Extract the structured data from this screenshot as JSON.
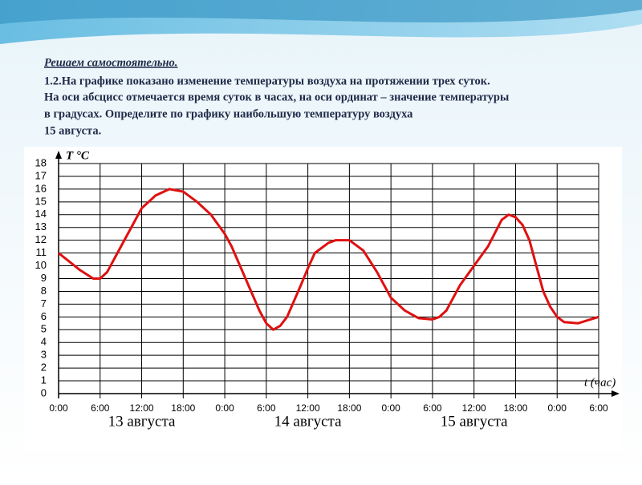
{
  "header": {
    "title": "Решаем самостоятельно.",
    "lines": [
      "1.2.На графике показано изменение температуры воздуха на протяжении трех суток.",
      "На оси абсцисс отмечается время суток в часах, на оси ординат – значение температуры",
      "в градусах. Определите по графику наибольшую температуру воздуха",
      "15 августа."
    ]
  },
  "chart_data": {
    "type": "line",
    "y_label": "T °C",
    "x_label": "t (час)",
    "day_labels": [
      "13 августа",
      "14 августа",
      "15 августа"
    ],
    "x": [
      0,
      3,
      5,
      6,
      7,
      9,
      11,
      12,
      14,
      16,
      18,
      20,
      22,
      24,
      25,
      27,
      29,
      30,
      31,
      32,
      33,
      35,
      36,
      37,
      39,
      40,
      42,
      44,
      46,
      48,
      50,
      52,
      54,
      55,
      56,
      58,
      60,
      62,
      64,
      65,
      66,
      67,
      68,
      69,
      70,
      71,
      72,
      73,
      75,
      78
    ],
    "series": [
      {
        "name": "T",
        "color": "#e01010",
        "values": [
          11,
          9.7,
          9,
          9,
          9.5,
          11.5,
          13.5,
          14.5,
          15.5,
          16,
          15.8,
          15,
          14,
          12.5,
          11.5,
          9,
          6.5,
          5.5,
          5,
          5.3,
          6,
          8.5,
          9.8,
          11,
          11.8,
          12,
          12,
          11.2,
          9.5,
          7.5,
          6.5,
          5.9,
          5.8,
          6,
          6.5,
          8.5,
          10,
          11.5,
          13.6,
          14,
          13.8,
          13.2,
          12,
          10,
          8,
          6.8,
          6,
          5.6,
          5.5,
          6
        ]
      }
    ],
    "xlim": [
      0,
      78
    ],
    "ylim": [
      0,
      18
    ],
    "xticks": [
      {
        "value": 0,
        "label": "0:00"
      },
      {
        "value": 6,
        "label": "6:00"
      },
      {
        "value": 12,
        "label": "12:00"
      },
      {
        "value": 18,
        "label": "18:00"
      },
      {
        "value": 24,
        "label": "0:00"
      },
      {
        "value": 30,
        "label": "6:00"
      },
      {
        "value": 36,
        "label": "12:00"
      },
      {
        "value": 42,
        "label": "18:00"
      },
      {
        "value": 48,
        "label": "0:00"
      },
      {
        "value": 54,
        "label": "6:00"
      },
      {
        "value": 60,
        "label": "12:00"
      },
      {
        "value": 66,
        "label": "18:00"
      },
      {
        "value": 72,
        "label": "0:00"
      },
      {
        "value": 78,
        "label": "6:00"
      }
    ],
    "yticks": [
      0,
      1,
      2,
      3,
      4,
      5,
      6,
      7,
      8,
      9,
      10,
      11,
      12,
      13,
      14,
      15,
      16,
      17,
      18
    ],
    "grid": true
  }
}
